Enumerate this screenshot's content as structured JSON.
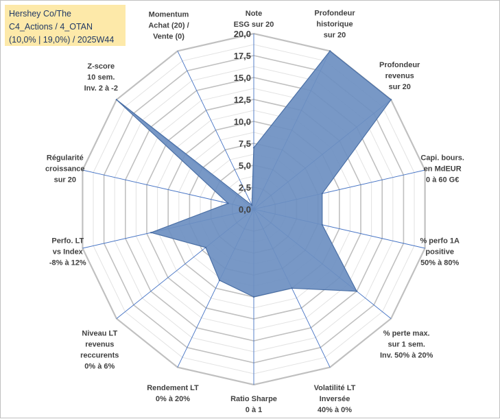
{
  "title_box": {
    "line1": "Hershey Co/The",
    "line2": "C4_Actions / 4_OTAN",
    "line3": "(10,0% | 19,0%) / 2025W44"
  },
  "colors": {
    "fill": "#6d8fc1",
    "stroke": "#4a6fa5",
    "spoke": "#4472c4",
    "grid": "#c0c0c0",
    "title_bg": "#fde9a9"
  },
  "chart_data": {
    "type": "radar",
    "title": "Hershey Co/The",
    "range": [
      0,
      20
    ],
    "ticks": [
      "0,0",
      "2,5",
      "5,0",
      "7,5",
      "10,0",
      "12,5",
      "15,0",
      "17,5",
      "20,0"
    ],
    "axes": [
      {
        "label": [
          "Note",
          "ESG sur 20"
        ],
        "value": 7.0
      },
      {
        "label": [
          "Profondeur",
          "historique",
          "sur 20"
        ],
        "value": 20.0
      },
      {
        "label": [
          "Profondeur",
          "revenus",
          "sur 20"
        ],
        "value": 20.0
      },
      {
        "label": [
          "Capi. bours.",
          "en MdEUR",
          "0 à 60 G€"
        ],
        "value": 8.0
      },
      {
        "label": [
          "% perfo 1A",
          "positive",
          "50% à 80%"
        ],
        "value": 8.0
      },
      {
        "label": [
          "% perte max.",
          "sur 1 sem.",
          "Inv. 50% à 20%"
        ],
        "value": 15.0
      },
      {
        "label": [
          "Volatilité LT",
          "Inversée",
          "40% à 0%"
        ],
        "value": 10.0
      },
      {
        "label": [
          "Ratio Sharpe",
          "0 à 1"
        ],
        "value": 10.0
      },
      {
        "label": [
          "Rendement LT",
          "0% à 20%"
        ],
        "value": 9.0
      },
      {
        "label": [
          "Niveau LT",
          "revenus",
          "reccurents",
          "0% à 6%"
        ],
        "value": 7.0
      },
      {
        "label": [
          "Perfo. LT",
          "vs Index",
          "-8% à 12%"
        ],
        "value": 12.0
      },
      {
        "label": [
          "Régularité",
          "croissance",
          "sur 20"
        ],
        "value": 3.0
      },
      {
        "label": [
          "Z-score",
          "10 sem.",
          "Inv. 2 à -2"
        ],
        "value": 20.0
      },
      {
        "label": [
          "Momentum",
          "Achat (20) /",
          "Vente (0)"
        ],
        "value": 0.5
      }
    ]
  }
}
